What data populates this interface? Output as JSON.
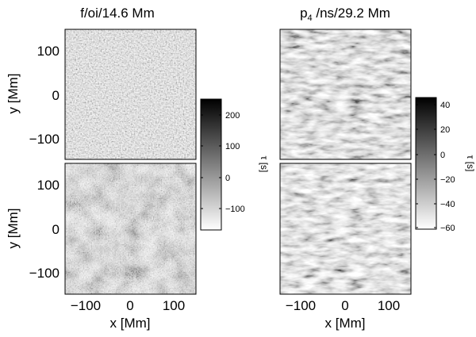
{
  "chart_data": [
    {
      "type": "heatmap",
      "title": "f/oi/14.6 Mm",
      "panel": "top-left",
      "xlim": [
        -150,
        150
      ],
      "ylim": [
        -150,
        150
      ],
      "ylabel": "y [Mm]",
      "xlabel": "",
      "yticks": [
        "100",
        "0",
        "−100"
      ],
      "texture": "fine-noise"
    },
    {
      "type": "heatmap",
      "title": "",
      "panel": "bottom-left",
      "xlim": [
        -150,
        150
      ],
      "ylim": [
        -150,
        150
      ],
      "ylabel": "y [Mm]",
      "xlabel": "x [Mm]",
      "xticks": [
        "−100",
        "0",
        "100"
      ],
      "yticks": [
        "100",
        "0",
        "−100"
      ],
      "texture": "cellular"
    },
    {
      "type": "heatmap",
      "title": "p₄ /ns/29.2 Mm",
      "panel": "top-right",
      "xlim": [
        -150,
        150
      ],
      "ylim": [
        -150,
        150
      ],
      "texture": "striated"
    },
    {
      "type": "heatmap",
      "title": "",
      "panel": "bottom-right",
      "xlim": [
        -150,
        150
      ],
      "ylim": [
        -150,
        150
      ],
      "xlabel": "x [Mm]",
      "xticks": [
        "−100",
        "0",
        "100"
      ],
      "texture": "striated"
    }
  ],
  "colorbars": [
    {
      "label": "τ [s]",
      "range": [
        -160,
        260
      ],
      "ticks": [
        "200",
        "100",
        "0",
        "−100"
      ],
      "colormap": "white-to-black"
    },
    {
      "label": "τ [s]",
      "range": [
        -65,
        48
      ],
      "ticks": [
        "40",
        "20",
        "0",
        "−20",
        "−40",
        "−60"
      ],
      "colormap": "white-to-black"
    }
  ]
}
